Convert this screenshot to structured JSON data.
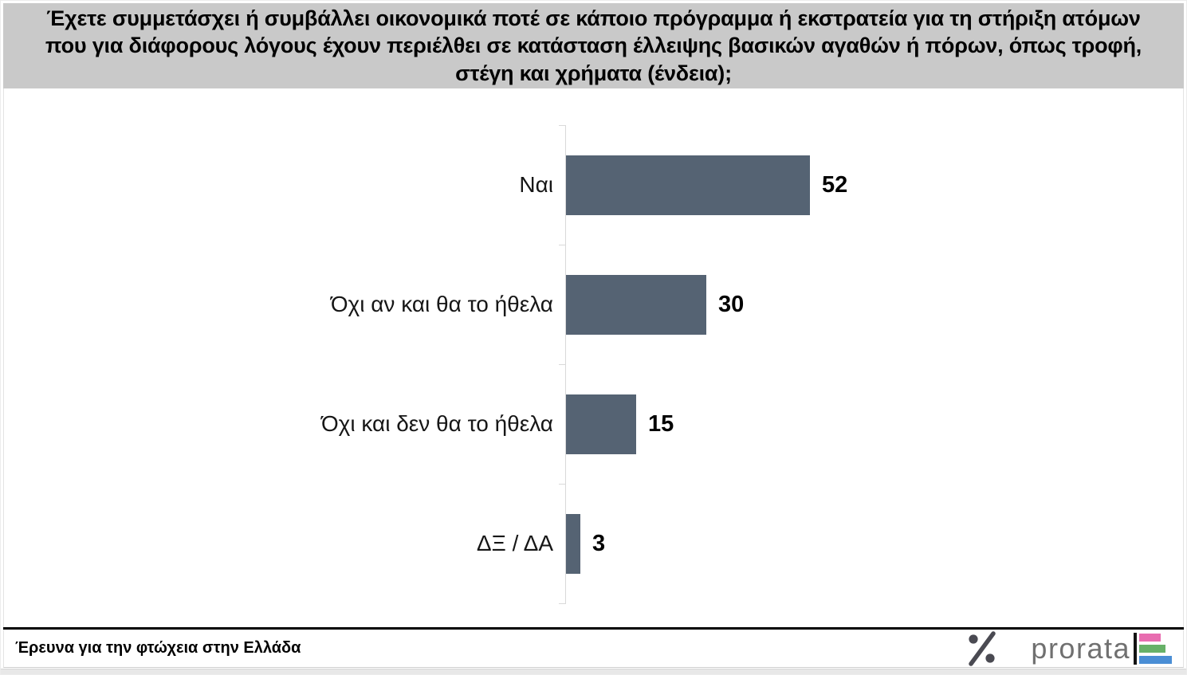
{
  "header": {
    "title": "Έχετε συμμετάσχει ή συμβάλλει οικονομικά ποτέ σε κάποιο πρόγραμμα ή εκστρατεία για τη στήριξη ατόμων που για διάφορους λόγους έχουν περιέλθει σε κατάσταση έλλειψης βασικών αγαθών ή πόρων, όπως τροφή, στέγη και χρήματα (ένδεια);"
  },
  "chart_data": {
    "type": "bar",
    "orientation": "horizontal",
    "categories": [
      "Ναι",
      "Όχι αν και θα το ήθελα",
      "Όχι και δεν θα το ήθελα",
      "ΔΞ / ΔΑ"
    ],
    "values": [
      52,
      30,
      15,
      3
    ],
    "title": "",
    "xlabel": "",
    "ylabel": "",
    "value_axis_visible": false,
    "value_range": [
      0,
      55
    ],
    "data_labels": true,
    "grid": false,
    "legend": false
  },
  "footer": {
    "source_label": "Έρευνα για την φτώχεια στην Ελλάδα",
    "logo_text": "prorata"
  },
  "colors": {
    "header_bg": "#c9c9c9",
    "bar": "#556373",
    "axis": "#d9d9d9",
    "divider": "#000000",
    "logo_percent": "#4a4a52",
    "logo_text": "#707070",
    "logo_mark_line": "#141414",
    "logo_bar_pink": "#e86db0",
    "logo_bar_green": "#67b168",
    "logo_bar_blue": "#4a8ed5"
  }
}
